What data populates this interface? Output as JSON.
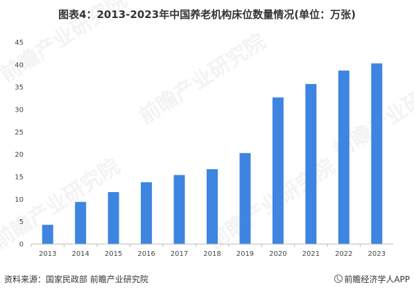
{
  "page": {
    "source": "资料来源：国家民政部 前瞻产业研究院",
    "brand": "前瞻经济学人APP"
  },
  "watermark": {
    "text": "前瞻产业研究院"
  },
  "colors": {
    "bar": "#3d85e0",
    "grid": "#dddddd",
    "axis": "#bbbbbb"
  },
  "chart_data": {
    "type": "bar",
    "title": "图表4：2013-2023年中国养老机构床位数量情况(单位：万张)",
    "xlabel": "",
    "ylabel": "",
    "categories": [
      "2013",
      "2014",
      "2015",
      "2016",
      "2017",
      "2018",
      "2019",
      "2020",
      "2021",
      "2022",
      "2023"
    ],
    "values": [
      4.3,
      9.4,
      11.6,
      13.8,
      15.4,
      16.7,
      20.3,
      32.7,
      35.7,
      38.7,
      40.3
    ],
    "ylim": [
      0,
      45
    ],
    "yticks": [
      0,
      5,
      10,
      15,
      20,
      25,
      30,
      35,
      40,
      45
    ],
    "grid": false,
    "legend": "none"
  }
}
